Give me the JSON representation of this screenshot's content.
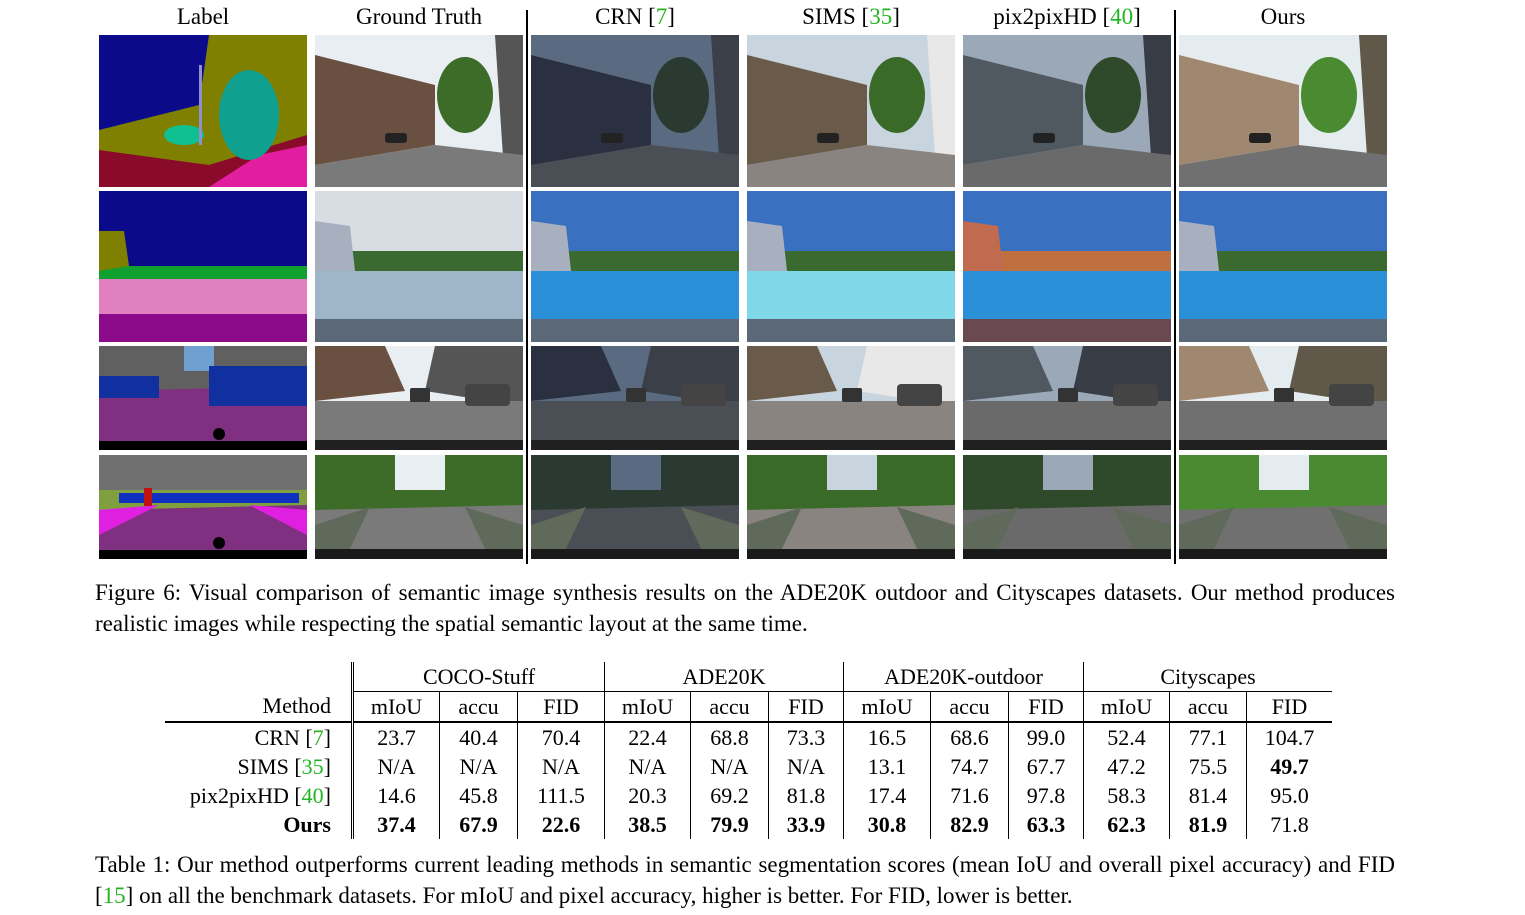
{
  "figure": {
    "columns": [
      {
        "text": "Label",
        "cite": ""
      },
      {
        "text": "Ground Truth",
        "cite": ""
      },
      {
        "text": "CRN [",
        "cite": "7",
        "close": "]"
      },
      {
        "text": "SIMS [",
        "cite": "35",
        "close": "]"
      },
      {
        "text": "pix2pixHD [",
        "cite": "40",
        "close": "]"
      },
      {
        "text": "Ours",
        "cite": ""
      }
    ],
    "caption": "Figure 6: Visual comparison of semantic image synthesis results on the ADE20K outdoor and Cityscapes datasets. Our method produces realistic images while respecting the spatial semantic layout at the same time."
  },
  "table": {
    "method_header": "Method",
    "groups": [
      "COCO-Stuff",
      "ADE20K",
      "ADE20K-outdoor",
      "Cityscapes"
    ],
    "metrics": [
      "mIoU",
      "accu",
      "FID"
    ],
    "rows": [
      {
        "method": "CRN [",
        "cite": "7",
        "close": "]",
        "values": [
          "23.7",
          "40.4",
          "70.4",
          "22.4",
          "68.8",
          "73.3",
          "16.5",
          "68.6",
          "99.0",
          "52.4",
          "77.1",
          "104.7"
        ],
        "bold": []
      },
      {
        "method": "SIMS [",
        "cite": "35",
        "close": "]",
        "values": [
          "N/A",
          "N/A",
          "N/A",
          "N/A",
          "N/A",
          "N/A",
          "13.1",
          "74.7",
          "67.7",
          "47.2",
          "75.5",
          "49.7"
        ],
        "bold": [
          11
        ]
      },
      {
        "method": "pix2pixHD [",
        "cite": "40",
        "close": "]",
        "values": [
          "14.6",
          "45.8",
          "111.5",
          "20.3",
          "69.2",
          "81.8",
          "17.4",
          "71.6",
          "97.8",
          "58.3",
          "81.4",
          "95.0"
        ],
        "bold": []
      },
      {
        "method": "Ours",
        "cite": "",
        "close": "",
        "values": [
          "37.4",
          "67.9",
          "22.6",
          "38.5",
          "79.9",
          "33.9",
          "30.8",
          "82.9",
          "63.3",
          "62.3",
          "81.9",
          "71.8"
        ],
        "bold": [
          0,
          1,
          2,
          3,
          4,
          5,
          6,
          7,
          8,
          9,
          10
        ],
        "bold_method": true
      }
    ],
    "caption_a": "Table 1: Our method outperforms current leading methods in semantic segmentation scores (mean IoU and overall pixel accuracy) and FID [",
    "caption_cite": "15",
    "caption_b": "] on all the benchmark datasets. For mIoU and pixel accuracy, higher is better. For FID, lower is better."
  }
}
